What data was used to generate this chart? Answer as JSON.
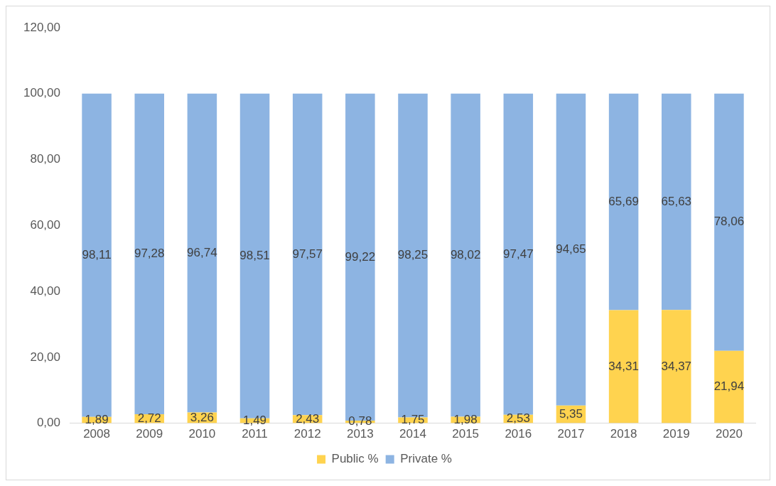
{
  "chart_data": {
    "type": "bar",
    "stacked": true,
    "categories": [
      "2008",
      "2009",
      "2010",
      "2011",
      "2012",
      "2013",
      "2014",
      "2015",
      "2016",
      "2017",
      "2018",
      "2019",
      "2020"
    ],
    "series": [
      {
        "name": "Public %",
        "color": "#ffd34f",
        "values": [
          1.89,
          2.72,
          3.26,
          1.49,
          2.43,
          0.78,
          1.75,
          1.98,
          2.53,
          5.35,
          34.31,
          34.37,
          21.94
        ],
        "value_labels": [
          "1,89",
          "2,72",
          "3,26",
          "1,49",
          "2,43",
          "0,78",
          "1,75",
          "1,98",
          "2,53",
          "5,35",
          "34,31",
          "34,37",
          "21,94"
        ]
      },
      {
        "name": "Private %",
        "color": "#8db4e2",
        "values": [
          98.11,
          97.28,
          96.74,
          98.51,
          97.57,
          99.22,
          98.25,
          98.02,
          97.47,
          94.65,
          65.69,
          65.63,
          78.06
        ],
        "value_labels": [
          "98,11",
          "97,28",
          "96,74",
          "98,51",
          "97,57",
          "99,22",
          "98,25",
          "98,02",
          "97,47",
          "94,65",
          "65,69",
          "65,63",
          "78,06"
        ]
      }
    ],
    "ylim": [
      0,
      120
    ],
    "yticks": [
      {
        "value": 0,
        "label": "0,00"
      },
      {
        "value": 20,
        "label": "20,00"
      },
      {
        "value": 40,
        "label": "40,00"
      },
      {
        "value": 60,
        "label": "60,00"
      },
      {
        "value": 80,
        "label": "80,00"
      },
      {
        "value": 100,
        "label": "100,00"
      },
      {
        "value": 120,
        "label": "120,00"
      }
    ],
    "grid": false,
    "legend": "bottom"
  }
}
